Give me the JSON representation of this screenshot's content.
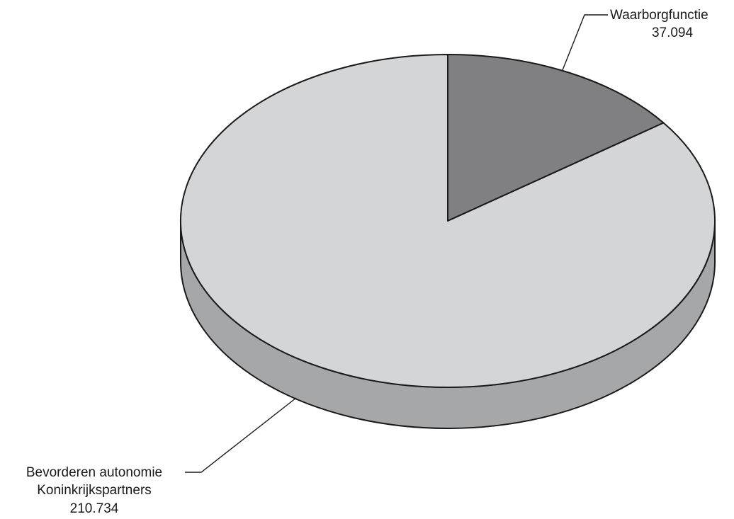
{
  "chart_data": {
    "type": "pie",
    "title": "",
    "slices": [
      {
        "label_line1": "Waarborgfunctie",
        "label_line2": "",
        "value": 37094,
        "value_label": "37.094",
        "color": "#808083"
      },
      {
        "label_line1": "Bevorderen autonomie",
        "label_line2": "Koninkrijkspartners",
        "value": 210734,
        "value_label": "210.734",
        "color": "#d4d5d7"
      }
    ],
    "side_color": "#a6a7a9",
    "stroke_color": "#1a1a1a"
  }
}
